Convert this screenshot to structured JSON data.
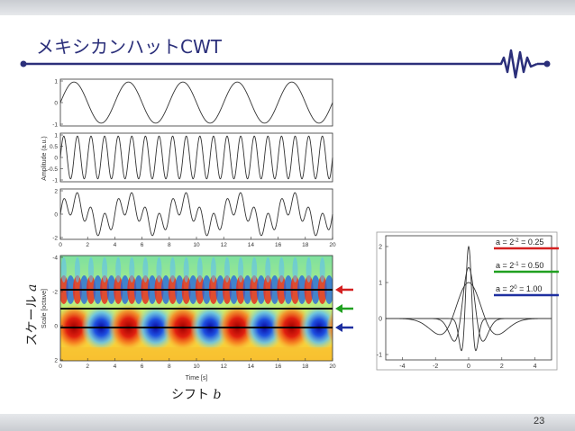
{
  "slide": {
    "title": "メキシカンハットCWT",
    "page_number": "23",
    "ylabel_prefix": "スケール ",
    "ylabel_var": "a",
    "xlabel_prefix": "シフト ",
    "xlabel_var": "b",
    "accent_color": "#2b2f7a"
  },
  "left_panels": {
    "amplitude_label": "Amplitude (a.u.)",
    "scale_label": "Scale [octave]",
    "time_label": "Time [s]",
    "x_ticks": [
      "0",
      "2",
      "4",
      "6",
      "8",
      "10",
      "12",
      "14",
      "16",
      "18",
      "20"
    ],
    "signal1_yticks": [
      "1",
      "0",
      "-1"
    ],
    "signal2_yticks": [
      "1",
      "0.5",
      "0",
      "-0.5",
      "-1"
    ],
    "signal3_yticks": [
      "2",
      "0",
      "-2"
    ],
    "scale_yticks": [
      "-4",
      "-2",
      "0",
      "2"
    ],
    "arrow_colors": [
      "#d42020",
      "#20a020",
      "#1e2fa0"
    ]
  },
  "wavelet": {
    "x_ticks": [
      "-4",
      "-2",
      "0",
      "2",
      "4"
    ],
    "y_ticks": [
      "2",
      "1",
      "0",
      "-1"
    ],
    "legend": [
      {
        "base": "a = 2",
        "exp": "-2",
        "value": " = 0.25",
        "color": "#d42020"
      },
      {
        "base": "a = 2",
        "exp": "-1",
        "value": " = 0.50",
        "color": "#20a020"
      },
      {
        "base": "a = 2",
        "exp": "0",
        "value": " = 1.00",
        "color": "#1e2fa0"
      }
    ]
  },
  "chart_data": [
    {
      "type": "line",
      "title": "",
      "xlabel": "",
      "ylabel": "",
      "xlim": [
        0,
        20
      ],
      "ylim": [
        -1,
        1
      ],
      "series": [
        {
          "function": "sin",
          "period": 4
        }
      ]
    },
    {
      "type": "line",
      "title": "",
      "xlabel": "",
      "ylabel": "Amplitude (a.u.)",
      "xlim": [
        0,
        20
      ],
      "ylim": [
        -1,
        1
      ],
      "series": [
        {
          "function": "sin",
          "period": 1
        }
      ]
    },
    {
      "type": "line",
      "title": "",
      "xlabel": "",
      "ylabel": "",
      "xlim": [
        0,
        20
      ],
      "ylim": [
        -2,
        2
      ],
      "series": [
        {
          "function": "sin+sin",
          "periods": [
            4,
            1
          ]
        }
      ]
    },
    {
      "type": "heatmap",
      "title": "",
      "xlabel": "Time [s]",
      "ylabel": "Scale [octave]",
      "xlim": [
        0,
        20
      ],
      "ylim": [
        -4,
        2
      ],
      "horizontal_lines_at_scale": [
        -2,
        -1,
        0
      ]
    },
    {
      "type": "line",
      "title": "",
      "xlabel": "",
      "ylabel": "",
      "xlim": [
        -5,
        5
      ],
      "ylim": [
        -1.1,
        2.3
      ],
      "series": [
        {
          "name": "a = 2^-2 = 0.25",
          "scale": 0.25
        },
        {
          "name": "a = 2^-1 = 0.50",
          "scale": 0.5
        },
        {
          "name": "a = 2^0 = 1.00",
          "scale": 1.0
        }
      ]
    }
  ]
}
